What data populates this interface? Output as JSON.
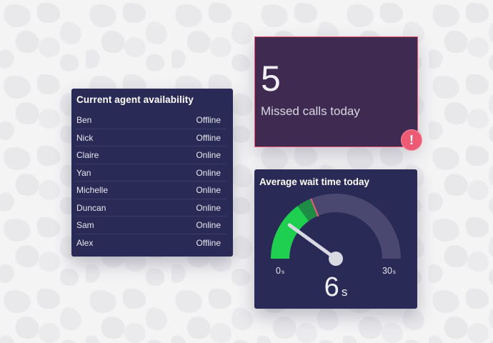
{
  "agents": {
    "title": "Current agent availability",
    "rows": [
      {
        "name": "Ben",
        "status": "Offline"
      },
      {
        "name": "Nick",
        "status": "Offline"
      },
      {
        "name": "Claire",
        "status": "Online"
      },
      {
        "name": "Yan",
        "status": "Online"
      },
      {
        "name": "Michelle",
        "status": "Online"
      },
      {
        "name": "Duncan",
        "status": "Online"
      },
      {
        "name": "Sam",
        "status": "Online"
      },
      {
        "name": "Alex",
        "status": "Offline"
      }
    ]
  },
  "missed_calls": {
    "count": "5",
    "label": "Missed calls today",
    "alert_icon": "exclamation-icon",
    "alert_symbol": "!",
    "accent_color": "#e8516d"
  },
  "wait_time": {
    "title": "Average wait time today",
    "min_label": "0",
    "max_label": "30",
    "unit": "s",
    "value_label": "6",
    "value": 6,
    "min": 0,
    "max": 30,
    "green_fraction": 0.3,
    "threshold_fraction": 0.375,
    "colors": {
      "green": "#1fcf4f",
      "darkgreen": "#1f8c45",
      "track": "#4a4870",
      "threshold": "#ef5a73",
      "needle": "#d9d9e4"
    }
  },
  "colors": {
    "card_bg": "#2a2a56",
    "missed_bg": "#3f2b52",
    "page_bg": "#f4f4f5"
  }
}
